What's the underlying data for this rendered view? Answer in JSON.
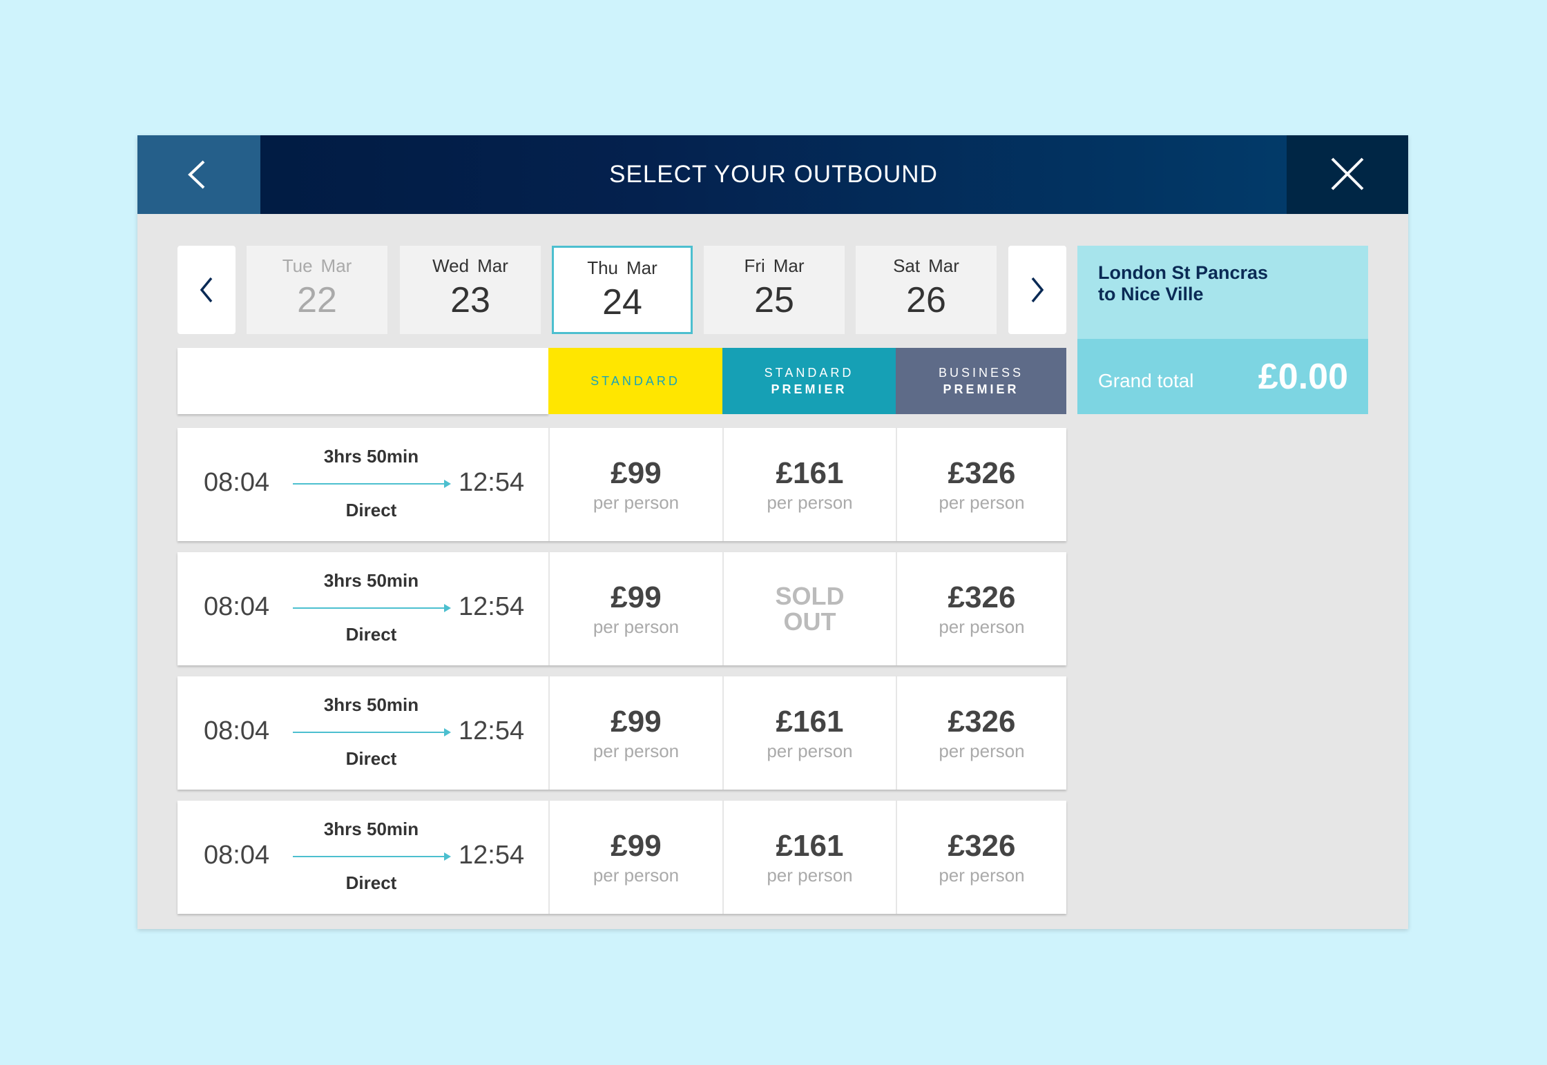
{
  "header": {
    "title": "SELECT YOUR OUTBOUND"
  },
  "dates": [
    {
      "weekday": "Tue",
      "month": "Mar",
      "day": "22",
      "state": "disabled"
    },
    {
      "weekday": "Wed",
      "month": "Mar",
      "day": "23",
      "state": "available"
    },
    {
      "weekday": "Thu",
      "month": "Mar",
      "day": "24",
      "state": "selected"
    },
    {
      "weekday": "Fri",
      "month": "Mar",
      "day": "25",
      "state": "available"
    },
    {
      "weekday": "Sat",
      "month": "Mar",
      "day": "26",
      "state": "available"
    }
  ],
  "classes": [
    {
      "name": "STANDARD",
      "color": "#ffe600",
      "text_color": "#1aa3b8"
    },
    {
      "name": "STANDARD",
      "sub": "PREMIER",
      "color": "#16a0b5",
      "text_color": "#ffffff"
    },
    {
      "name": "BUSINESS",
      "sub": "PREMIER",
      "color": "#5e6b88",
      "text_color": "#ffffff"
    }
  ],
  "journeys": [
    {
      "depart": "08:04",
      "arrive": "12:54",
      "duration": "3hrs 50min",
      "type": "Direct",
      "fares": [
        {
          "price": "£99",
          "note": "per person"
        },
        {
          "price": "£161",
          "note": "per person"
        },
        {
          "price": "£326",
          "note": "per person"
        }
      ]
    },
    {
      "depart": "08:04",
      "arrive": "12:54",
      "duration": "3hrs 50min",
      "type": "Direct",
      "fares": [
        {
          "price": "£99",
          "note": "per person"
        },
        {
          "status": "SOLD OUT"
        },
        {
          "price": "£326",
          "note": "per person"
        }
      ]
    },
    {
      "depart": "08:04",
      "arrive": "12:54",
      "duration": "3hrs 50min",
      "type": "Direct",
      "fares": [
        {
          "price": "£99",
          "note": "per person"
        },
        {
          "price": "£161",
          "note": "per person"
        },
        {
          "price": "£326",
          "note": "per person"
        }
      ]
    },
    {
      "depart": "08:04",
      "arrive": "12:54",
      "duration": "3hrs 50min",
      "type": "Direct",
      "fares": [
        {
          "price": "£99",
          "note": "per person"
        },
        {
          "price": "£161",
          "note": "per person"
        },
        {
          "price": "£326",
          "note": "per person"
        }
      ]
    }
  ],
  "summary": {
    "route": [
      "London St Pancras",
      "to Nice Ville"
    ],
    "total_label": "Grand total",
    "total": "£0.00"
  }
}
